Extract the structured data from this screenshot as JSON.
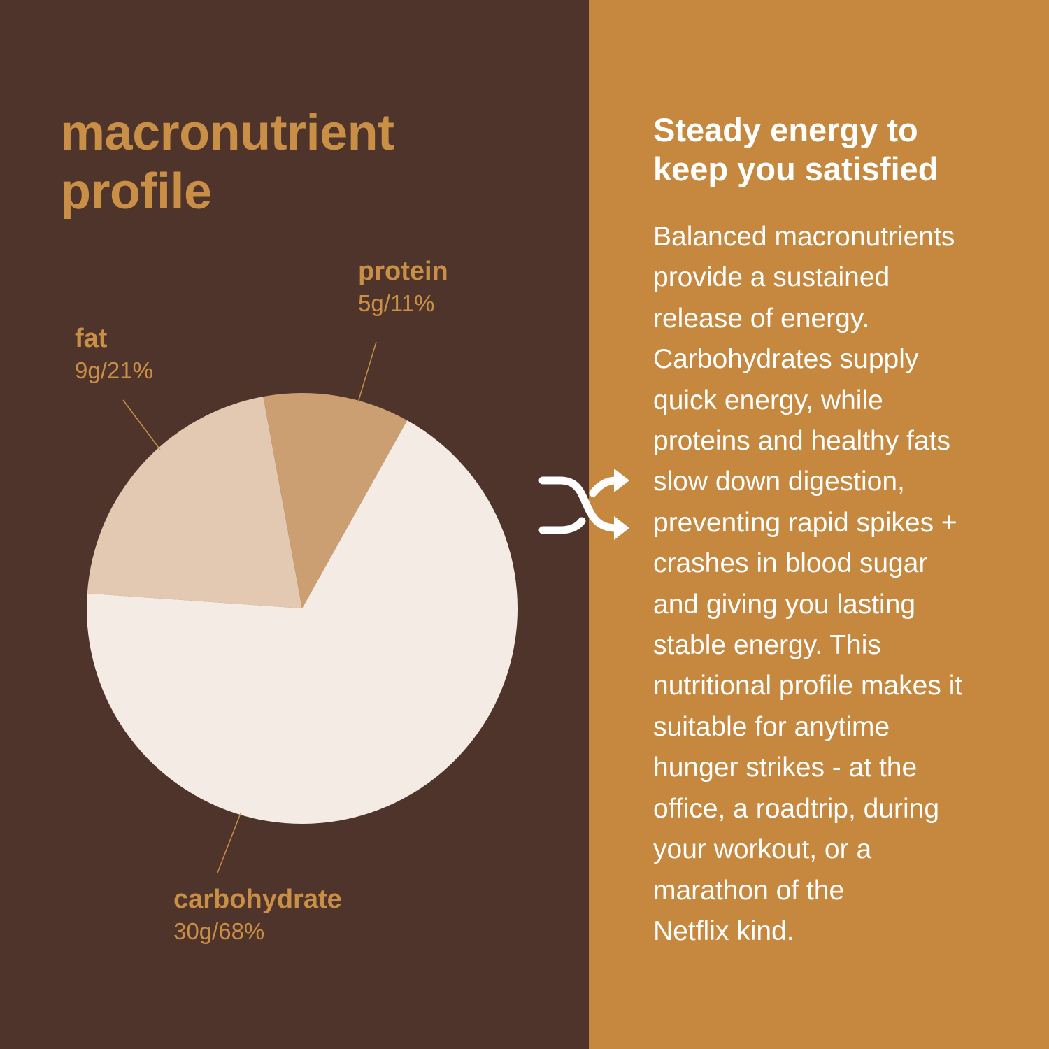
{
  "title_lines": [
    "macronutrient",
    "profile"
  ],
  "colors": {
    "background_left": "#4e342b",
    "background_right": "#c6883e",
    "label": "#c98f47",
    "fat": "#e3c9b1",
    "protein": "#cc9f73",
    "carbohydrate": "#f4ece4"
  },
  "chart_data": {
    "type": "pie",
    "slices": [
      {
        "name": "fat",
        "label": "9g/21%",
        "grams": 9,
        "percent": 21,
        "color": "#e3c9b1"
      },
      {
        "name": "protein",
        "label": "5g/11%",
        "grams": 5,
        "percent": 11,
        "color": "#cc9f73"
      },
      {
        "name": "carbohydrate",
        "label": "30g/68%",
        "grams": 30,
        "percent": 68,
        "color": "#f4ece4"
      }
    ]
  },
  "icon": "shuffle-arrows-icon",
  "heading_lines": [
    "Steady energy to",
    "keep you satisfied"
  ],
  "body_lines": [
    "Balanced macronutrients",
    "provide a sustained",
    "release of energy.",
    "Carbohydrates supply",
    "quick energy, while",
    "proteins and healthy fats",
    "slow down digestion,",
    "preventing rapid spikes +",
    "crashes in blood sugar",
    "and giving you lasting",
    "stable energy. This",
    "nutritional profile makes it",
    "suitable for anytime",
    "hunger strikes - at the",
    "office, a roadtrip, during",
    "your workout, or a",
    "marathon of the",
    "Netflix kind."
  ]
}
